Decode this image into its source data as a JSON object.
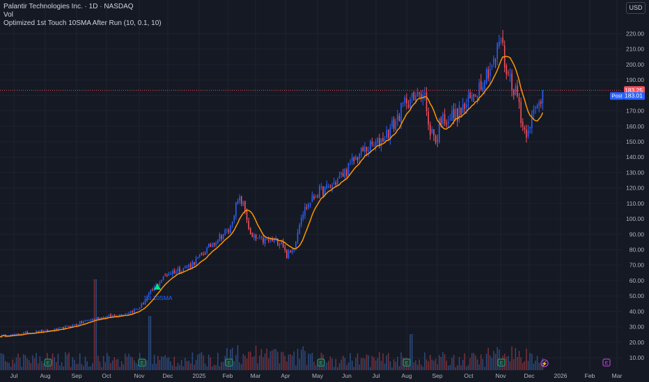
{
  "header": {
    "symbol_line": "Palantir Technologies Inc. · 1D · NASDAQ",
    "volume_label": "Vol",
    "indicator_line": "Optimized 1st Touch 10SMA After Run (10, 0.1, 10)",
    "currency": "USD"
  },
  "price_tags": {
    "last_price": "183.25",
    "post_label": "Post",
    "post_price": "183.01"
  },
  "signal": {
    "label": "1st 10SMA"
  },
  "colors": {
    "background": "#151924",
    "up": "#2962ff",
    "down": "#f7525f",
    "sma": "#ff9800",
    "signal": "#00e676",
    "grid": "#1f2330"
  },
  "chart_data": {
    "type": "candlestick",
    "yaxis_ticks": [
      10,
      20,
      30,
      40,
      50,
      60,
      70,
      80,
      90,
      100,
      110,
      120,
      130,
      140,
      150,
      160,
      170,
      180,
      190,
      200,
      210,
      220
    ],
    "xaxis_ticks": [
      "Jul",
      "Aug",
      "Sep",
      "Oct",
      "Nov",
      "Dec",
      "2025",
      "Feb",
      "Mar",
      "Apr",
      "May",
      "Jun",
      "Jul",
      "Aug",
      "Sep",
      "Oct",
      "Nov",
      "Dec",
      "2026",
      "Feb",
      "Mar"
    ],
    "anchors": [
      [
        "Jul 2024",
        24
      ],
      [
        "Aug 2024",
        28
      ],
      [
        "Sep 2024",
        31
      ],
      [
        "Oct 2024",
        37
      ],
      [
        "Nov 2024",
        42
      ],
      [
        "Dec 2024",
        64
      ],
      [
        "Jan 2025",
        76
      ],
      [
        "Feb 2025",
        90
      ],
      [
        "Mar 2025",
        90
      ],
      [
        "Apr 2025",
        83
      ],
      [
        "May 2025",
        120
      ],
      [
        "Jun 2025",
        130
      ],
      [
        "Jul 2025",
        148
      ],
      [
        "Aug 2025",
        180
      ],
      [
        "Sep 2025",
        160
      ],
      [
        "Oct 2025",
        180
      ],
      [
        "Nov 2025",
        200
      ],
      [
        "Dec 2025",
        168
      ],
      [
        "mid Dec 2025",
        183
      ]
    ],
    "series": [
      {
        "name": "Price",
        "kind": "candles"
      },
      {
        "name": "10SMA",
        "kind": "line"
      },
      {
        "name": "Vol",
        "kind": "bars"
      }
    ],
    "last_price": 183.25,
    "post_price": 183.01,
    "price_high": 207,
    "signal_date": "Nov 2024",
    "grid": true
  }
}
